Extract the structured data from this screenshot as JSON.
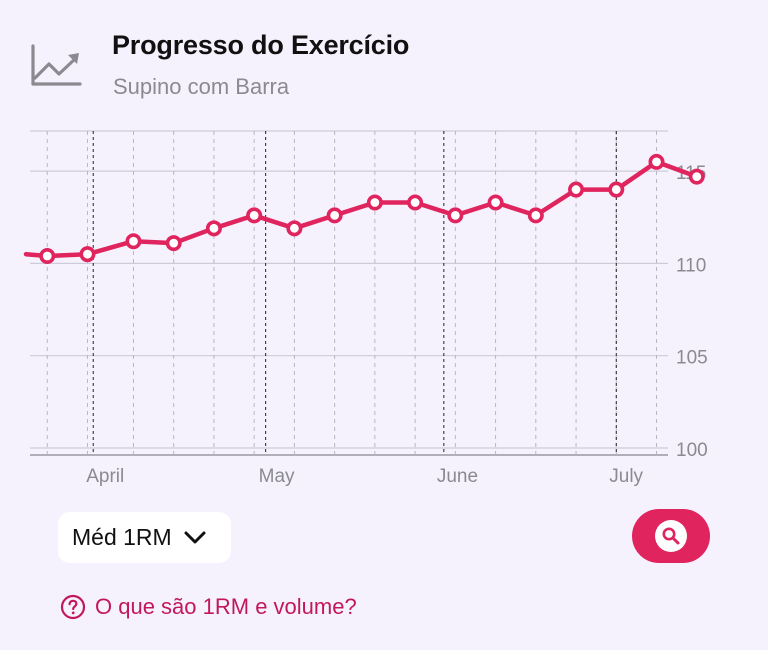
{
  "header": {
    "title": "Progresso do Exercício",
    "subtitle": "Supino com Barra",
    "icon": "line-chart-icon"
  },
  "colors": {
    "accent": "#e0245e",
    "grid": "#cfcad8",
    "axis_text": "#8a8a90",
    "background": "#f6f2fd"
  },
  "chart_data": {
    "type": "line",
    "title": "",
    "xlabel": "",
    "ylabel": "",
    "ylim": [
      100,
      117
    ],
    "y_ticks": [
      100,
      105,
      110,
      115
    ],
    "y_axis_position": "right",
    "x_start": "2024-03-21",
    "x_end": "2024-07-10",
    "month_ticks": [
      {
        "label": "April",
        "date": "2024-04-01"
      },
      {
        "label": "May",
        "date": "2024-05-01"
      },
      {
        "label": "June",
        "date": "2024-06-01"
      },
      {
        "label": "July",
        "date": "2024-07-01"
      }
    ],
    "grid": true,
    "series": [
      {
        "color": "#e0245e",
        "points": [
          {
            "date": "2024-03-20",
            "value": 110.5
          },
          {
            "date": "2024-03-24",
            "value": 110.4
          },
          {
            "date": "2024-03-31",
            "value": 110.5
          },
          {
            "date": "2024-04-08",
            "value": 111.2
          },
          {
            "date": "2024-04-15",
            "value": 111.1
          },
          {
            "date": "2024-04-22",
            "value": 111.9
          },
          {
            "date": "2024-04-29",
            "value": 112.6
          },
          {
            "date": "2024-05-06",
            "value": 111.9
          },
          {
            "date": "2024-05-13",
            "value": 112.6
          },
          {
            "date": "2024-05-20",
            "value": 113.3
          },
          {
            "date": "2024-05-27",
            "value": 113.3
          },
          {
            "date": "2024-06-03",
            "value": 112.6
          },
          {
            "date": "2024-06-10",
            "value": 113.3
          },
          {
            "date": "2024-06-17",
            "value": 112.6
          },
          {
            "date": "2024-06-24",
            "value": 114.0
          },
          {
            "date": "2024-07-01",
            "value": 114.0
          },
          {
            "date": "2024-07-08",
            "value": 115.5
          },
          {
            "date": "2024-07-15",
            "value": 114.7
          }
        ]
      }
    ]
  },
  "controls": {
    "metric_select_label": "Méd 1RM",
    "metric_select_icon": "chevron-down-icon",
    "zoom_icon": "magnifier-icon"
  },
  "help": {
    "link_text": "O que são 1RM e volume?",
    "icon": "question-circle-icon"
  }
}
